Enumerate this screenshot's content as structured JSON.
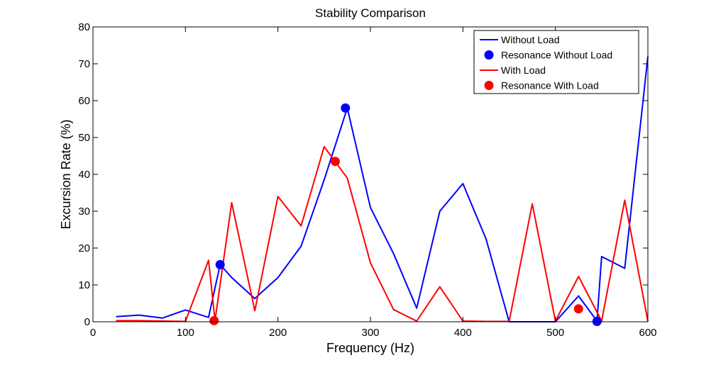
{
  "chart_data": {
    "type": "line",
    "title": "Stability Comparison",
    "xlabel": "Frequency (Hz)",
    "ylabel": "Excursion Rate (%)",
    "xlim": [
      0,
      600
    ],
    "ylim": [
      0,
      80
    ],
    "xticks": [
      0,
      100,
      200,
      300,
      400,
      500,
      600
    ],
    "yticks": [
      0,
      10,
      20,
      30,
      40,
      50,
      60,
      70,
      80
    ],
    "grid": false,
    "legend_position": "top-right",
    "series": [
      {
        "name": "Without Load",
        "kind": "line",
        "color": "#0000ff",
        "x": [
          25,
          50,
          75,
          100,
          125,
          137.5,
          150,
          175,
          200,
          225,
          250,
          275,
          300,
          325,
          350,
          375,
          400,
          425,
          450,
          475,
          500,
          525,
          545,
          550,
          575,
          600
        ],
        "y": [
          1.4,
          1.8,
          1.0,
          3.2,
          1.2,
          15.5,
          12.0,
          6.3,
          12.0,
          20.5,
          38.5,
          58.0,
          31.0,
          18.5,
          3.7,
          30.0,
          37.5,
          22.5,
          0.0,
          0.0,
          0.0,
          7.0,
          0.2,
          17.7,
          14.5,
          72.0
        ]
      },
      {
        "name": "Resonance Without Load",
        "kind": "marker",
        "color": "#0000ff",
        "x": [
          137.5,
          273,
          545
        ],
        "y": [
          15.5,
          58.0,
          0.1
        ]
      },
      {
        "name": "With Load",
        "kind": "line",
        "color": "#ff0000",
        "x": [
          25,
          50,
          75,
          100,
          125,
          132,
          150,
          175,
          200,
          225,
          250,
          275,
          300,
          325,
          350,
          375,
          400,
          425,
          450,
          475,
          500,
          525,
          550,
          575,
          600
        ],
        "y": [
          0.3,
          0.3,
          0.2,
          0.1,
          16.7,
          0.3,
          32.3,
          3.0,
          34.0,
          26.0,
          47.5,
          39.0,
          16.0,
          3.3,
          0.2,
          9.5,
          0.2,
          0.1,
          0.1,
          32.0,
          0.2,
          12.3,
          0.2,
          33.0,
          0.2
        ]
      },
      {
        "name": "Resonance With Load",
        "kind": "marker",
        "color": "#ff0000",
        "x": [
          131,
          262,
          525
        ],
        "y": [
          0.3,
          43.5,
          3.5
        ]
      }
    ]
  }
}
